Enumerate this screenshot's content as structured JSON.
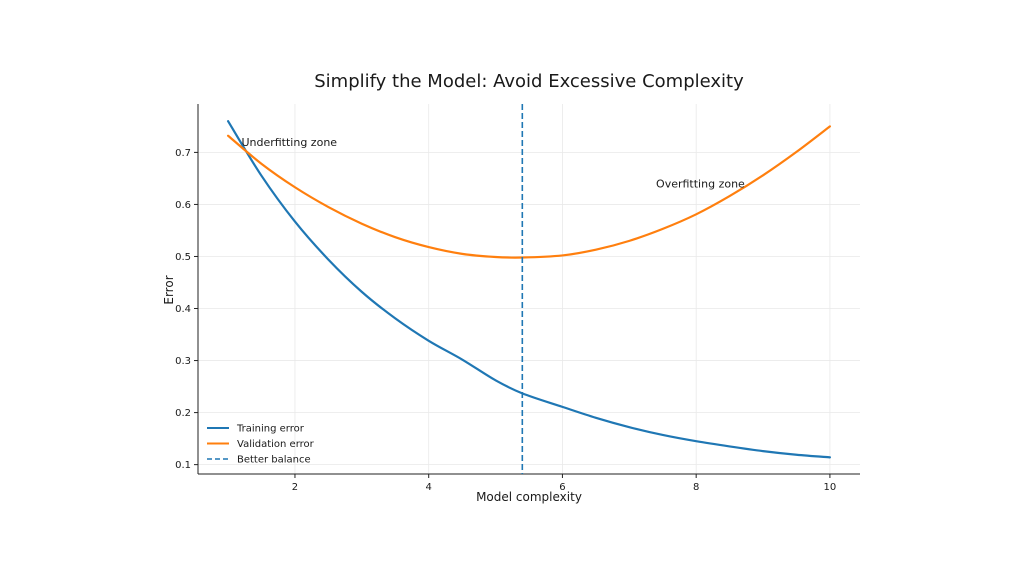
{
  "chart_data": {
    "type": "line",
    "title": "Simplify the Model: Avoid Excessive Complexity",
    "xlabel": "Model complexity",
    "ylabel": "Error",
    "xlim": [
      0.55,
      10.45
    ],
    "ylim": [
      0.082,
      0.793
    ],
    "xticks": [
      2,
      4,
      6,
      8,
      10
    ],
    "yticks": [
      0.1,
      0.2,
      0.3,
      0.4,
      0.5,
      0.6,
      0.7
    ],
    "grid": true,
    "legend_position": "lower-left",
    "series": [
      {
        "name": "Training error",
        "color": "#1f77b4",
        "style": "solid",
        "x": [
          1.0,
          1.5,
          2.0,
          2.5,
          3.0,
          3.5,
          4.0,
          4.5,
          5.0,
          5.4,
          6.0,
          6.5,
          7.0,
          7.5,
          8.0,
          8.5,
          9.0,
          9.5,
          10.0
        ],
        "y": [
          0.76,
          0.655,
          0.567,
          0.494,
          0.432,
          0.381,
          0.338,
          0.302,
          0.262,
          0.237,
          0.211,
          0.19,
          0.172,
          0.157,
          0.145,
          0.135,
          0.126,
          0.119,
          0.114
        ]
      },
      {
        "name": "Validation error",
        "color": "#ff7f0e",
        "style": "solid",
        "x": [
          1.0,
          1.5,
          2.0,
          2.5,
          3.0,
          3.5,
          4.0,
          4.5,
          5.0,
          5.4,
          6.0,
          6.5,
          7.0,
          7.5,
          8.0,
          8.5,
          9.0,
          9.5,
          10.0
        ],
        "y": [
          0.732,
          0.678,
          0.633,
          0.595,
          0.563,
          0.537,
          0.518,
          0.505,
          0.499,
          0.498,
          0.502,
          0.513,
          0.53,
          0.553,
          0.581,
          0.616,
          0.656,
          0.701,
          0.75
        ]
      }
    ],
    "vline": {
      "name": "Better balance",
      "x": 5.4,
      "color": "#1f77b4",
      "style": "dashed"
    },
    "annotations": [
      {
        "text": "Underfitting zone",
        "x": 1.2,
        "y": 0.72
      },
      {
        "text": "Overfitting zone",
        "x": 7.4,
        "y": 0.64
      }
    ]
  }
}
